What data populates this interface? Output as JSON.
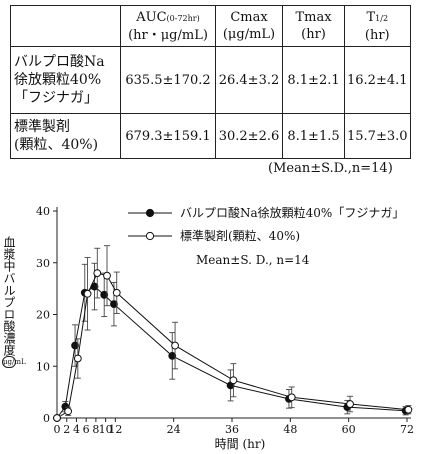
{
  "table": {
    "headers": [
      {
        "main": "",
        "sub": "",
        "unit": ""
      },
      {
        "main": "AUC",
        "sub": "(0-72hr)",
        "unit": "(hr・μg/mL)"
      },
      {
        "main": "Cmax",
        "sub": "",
        "unit": "(μg/mL)"
      },
      {
        "main": "Tmax",
        "sub": "",
        "unit": "(hr)"
      },
      {
        "main": "T",
        "sub": "1/2",
        "unit": "(hr)"
      }
    ],
    "rows": [
      {
        "label_lines": [
          "バルプロ酸Na",
          "徐放顆粒40%",
          "「フジナガ」"
        ],
        "values": [
          "635.5±170.2",
          "26.4±3.2",
          "8.1±2.1",
          "16.2±4.1"
        ]
      },
      {
        "label_lines": [
          "標準製剤",
          "(顆粒、40%)"
        ],
        "values": [
          "679.3±159.1",
          "30.2±2.6",
          "8.1±1.5",
          "15.7±3.0"
        ]
      }
    ],
    "note": "(Mean±S.D.,n=14)"
  },
  "chart_data": {
    "type": "line",
    "xlabel": "時間 (hr)",
    "ylabel": "血漿中バルプロ酸濃度",
    "yunit": "μg/mL",
    "xlim": [
      0,
      72
    ],
    "ylim": [
      0,
      40
    ],
    "xticks": [
      0,
      2,
      4,
      6,
      8,
      10,
      12,
      24,
      36,
      48,
      60,
      72
    ],
    "yticks": [
      0,
      10,
      20,
      30,
      40
    ],
    "legend_position": "top-right",
    "annotation": "Mean±S. D., n=14",
    "series": [
      {
        "name": "バルプロ酸Na徐放顆粒40%「フジナガ」",
        "marker": "filled-circle",
        "color": "#111111",
        "x": [
          0,
          2,
          4,
          6,
          8,
          10,
          12,
          24,
          36,
          48,
          60,
          72
        ],
        "y": [
          0,
          2.2,
          14.0,
          24.2,
          25.4,
          23.8,
          22.0,
          12.0,
          6.3,
          3.7,
          2.1,
          1.4
        ],
        "sd": [
          0,
          1.0,
          4.0,
          5.5,
          4.5,
          4.2,
          4.2,
          4.5,
          3.0,
          1.8,
          1.3,
          0.8
        ]
      },
      {
        "name": "標準製剤(顆粒、40%)",
        "marker": "open-circle",
        "color": "#111111",
        "x": [
          0,
          2,
          4,
          6,
          8,
          10,
          12,
          24,
          36,
          48,
          60,
          72
        ],
        "y": [
          0,
          1.3,
          11.5,
          24.0,
          28.0,
          27.5,
          24.2,
          14.0,
          7.3,
          4.0,
          2.7,
          1.6
        ],
        "sd": [
          0,
          0.8,
          3.8,
          7.0,
          4.8,
          5.8,
          4.0,
          4.5,
          3.2,
          2.0,
          1.5,
          0.8
        ]
      }
    ]
  }
}
